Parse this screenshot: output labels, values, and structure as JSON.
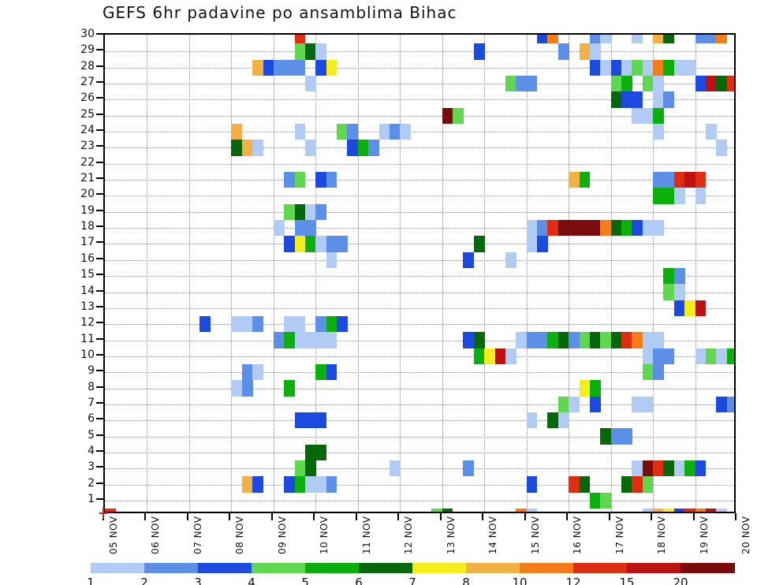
{
  "title": "GEFS 6hr padavine po ansamblima Bihac",
  "y_axis": {
    "labels": [
      "30",
      "29",
      "28",
      "27",
      "26",
      "25",
      "24",
      "23",
      "22",
      "21",
      "20",
      "19",
      "18",
      "17",
      "16",
      "15",
      "14",
      "13",
      "12",
      "11",
      "10",
      "9",
      "8",
      "7",
      "6",
      "5",
      "4",
      "3",
      "2",
      "1"
    ]
  },
  "x_axis": {
    "labels": [
      "05 NOV",
      "06 NOV",
      "07 NOV",
      "08 NOV",
      "09 NOV",
      "10 NOV",
      "11 NOV",
      "12 NOV",
      "13 NOV",
      "14 NOV",
      "15 NOV",
      "16 NOV",
      "17 NOV",
      "18 NOV",
      "19 NOV",
      "20 NOV"
    ]
  },
  "colors": {
    "p": "#b0ccf4",
    "c": "#5c8fe8",
    "b": "#1c4ae0",
    "lg": "#5fd74f",
    "g": "#0cb00c",
    "dg": "#07670b",
    "y": "#f3ee1c",
    "lo": "#f3b144",
    "o": "#f47d17",
    "r": "#df2d12",
    "dr": "#bc1312",
    "m": "#7c0b0b",
    "origin_marker": "#cc2a1e"
  },
  "colorbar": {
    "tick_labels": [
      "1",
      "2",
      "3",
      "4",
      "5",
      "6",
      "7",
      "8",
      "10",
      "12",
      "15",
      "20"
    ],
    "segment_keys": [
      "p",
      "c",
      "b",
      "lg",
      "g",
      "dg",
      "y",
      "lo",
      "o",
      "r",
      "dr",
      "m"
    ],
    "segment_ranges": [
      "1-2",
      "2-3",
      "3-4",
      "4-5",
      "5-6",
      "6-7",
      "7-8",
      "8-10",
      "10-12",
      "12-15",
      "15-20",
      "20+"
    ]
  },
  "chart_data": {
    "type": "heatmap",
    "title": "GEFS 6hr padavine po ansamblima Bihac",
    "x_range": [
      "05 NOV",
      "20 NOV"
    ],
    "slots": 60,
    "slot_duration_hours": 6,
    "rows": "ensemble members 1-30 (bottom to top); row 0 = strip on time axis",
    "units_mm": {
      "p": "1-2",
      "c": "2-3",
      "b": "3-4",
      "lg": "4-5",
      "g": "5-6",
      "dg": "6-7",
      "y": "7-8",
      "lo": "8-10",
      "o": "10-12",
      "r": "12-15",
      "dr": "15-20",
      "m": ">20"
    },
    "cells": {
      "30": [
        [
          18,
          "r"
        ],
        [
          41,
          "b"
        ],
        [
          42,
          "o"
        ],
        [
          46,
          "c"
        ],
        [
          47,
          "p"
        ],
        [
          50,
          "p"
        ],
        [
          52,
          "lo"
        ],
        [
          53,
          "dg"
        ],
        [
          56,
          "c"
        ],
        [
          57,
          "c"
        ],
        [
          58,
          "o"
        ]
      ],
      "29": [
        [
          18,
          "lg"
        ],
        [
          19,
          "dg"
        ],
        [
          20,
          "p"
        ],
        [
          35,
          "b"
        ],
        [
          43,
          "c"
        ],
        [
          45,
          "lo"
        ],
        [
          46,
          "p"
        ]
      ],
      "28": [
        [
          14,
          "lo"
        ],
        [
          15,
          "b"
        ],
        [
          16,
          "c"
        ],
        [
          17,
          "c"
        ],
        [
          18,
          "c"
        ],
        [
          20,
          "b"
        ],
        [
          21,
          "y"
        ],
        [
          46,
          "b"
        ],
        [
          47,
          "p"
        ],
        [
          48,
          "b"
        ],
        [
          49,
          "p"
        ],
        [
          50,
          "lg"
        ],
        [
          51,
          "p"
        ],
        [
          52,
          "o"
        ],
        [
          53,
          "g"
        ],
        [
          54,
          "p"
        ],
        [
          55,
          "p"
        ]
      ],
      "27": [
        [
          19,
          "p"
        ],
        [
          38,
          "lg"
        ],
        [
          39,
          "c"
        ],
        [
          40,
          "c"
        ],
        [
          48,
          "lg"
        ],
        [
          49,
          "g"
        ],
        [
          51,
          "lg"
        ],
        [
          52,
          "p"
        ],
        [
          56,
          "b"
        ],
        [
          57,
          "dr"
        ],
        [
          58,
          "dg"
        ],
        [
          59,
          "r"
        ]
      ],
      "26": [
        [
          48,
          "dg"
        ],
        [
          49,
          "b"
        ],
        [
          50,
          "b"
        ],
        [
          52,
          "p"
        ],
        [
          53,
          "c"
        ]
      ],
      "25": [
        [
          32,
          "m"
        ],
        [
          33,
          "lg"
        ],
        [
          50,
          "p"
        ],
        [
          51,
          "p"
        ],
        [
          52,
          "g"
        ]
      ],
      "24": [
        [
          12,
          "lo"
        ],
        [
          18,
          "p"
        ],
        [
          22,
          "lg"
        ],
        [
          23,
          "c"
        ],
        [
          26,
          "p"
        ],
        [
          27,
          "c"
        ],
        [
          28,
          "p"
        ],
        [
          52,
          "p"
        ],
        [
          57,
          "p"
        ]
      ],
      "23": [
        [
          12,
          "dg"
        ],
        [
          13,
          "lo"
        ],
        [
          14,
          "p"
        ],
        [
          19,
          "p"
        ],
        [
          23,
          "b"
        ],
        [
          24,
          "g"
        ],
        [
          25,
          "c"
        ],
        [
          58,
          "p"
        ]
      ],
      "22": [],
      "21": [
        [
          17,
          "c"
        ],
        [
          18,
          "lg"
        ],
        [
          20,
          "b"
        ],
        [
          21,
          "c"
        ],
        [
          44,
          "lo"
        ],
        [
          45,
          "g"
        ],
        [
          52,
          "c"
        ],
        [
          53,
          "c"
        ],
        [
          54,
          "r"
        ],
        [
          55,
          "dr"
        ],
        [
          56,
          "r"
        ]
      ],
      "20": [
        [
          52,
          "g"
        ],
        [
          53,
          "g"
        ],
        [
          54,
          "p"
        ],
        [
          56,
          "p"
        ]
      ],
      "19": [
        [
          17,
          "lg"
        ],
        [
          18,
          "dg"
        ],
        [
          19,
          "p"
        ],
        [
          20,
          "c"
        ]
      ],
      "18": [
        [
          16,
          "p"
        ],
        [
          18,
          "c"
        ],
        [
          19,
          "c"
        ],
        [
          40,
          "p"
        ],
        [
          41,
          "c"
        ],
        [
          42,
          "r"
        ],
        [
          43,
          "m"
        ],
        [
          44,
          "m"
        ],
        [
          45,
          "m"
        ],
        [
          46,
          "m"
        ],
        [
          47,
          "o"
        ],
        [
          48,
          "dg"
        ],
        [
          49,
          "g"
        ],
        [
          50,
          "b"
        ],
        [
          51,
          "p"
        ],
        [
          52,
          "p"
        ]
      ],
      "17": [
        [
          17,
          "b"
        ],
        [
          18,
          "y"
        ],
        [
          19,
          "g"
        ],
        [
          20,
          "p"
        ],
        [
          21,
          "c"
        ],
        [
          22,
          "c"
        ],
        [
          35,
          "dg"
        ],
        [
          40,
          "p"
        ],
        [
          41,
          "b"
        ]
      ],
      "16": [
        [
          21,
          "p"
        ],
        [
          34,
          "b"
        ],
        [
          38,
          "p"
        ]
      ],
      "15": [
        [
          53,
          "g"
        ],
        [
          54,
          "c"
        ]
      ],
      "14": [
        [
          53,
          "lg"
        ],
        [
          54,
          "p"
        ]
      ],
      "13": [
        [
          54,
          "b"
        ],
        [
          55,
          "y"
        ],
        [
          56,
          "dr"
        ]
      ],
      "12": [
        [
          9,
          "b"
        ],
        [
          12,
          "p"
        ],
        [
          13,
          "p"
        ],
        [
          14,
          "c"
        ],
        [
          17,
          "p"
        ],
        [
          18,
          "p"
        ],
        [
          20,
          "c"
        ],
        [
          21,
          "g"
        ],
        [
          22,
          "b"
        ]
      ],
      "11": [
        [
          16,
          "c"
        ],
        [
          17,
          "g"
        ],
        [
          18,
          "p"
        ],
        [
          19,
          "p"
        ],
        [
          20,
          "p"
        ],
        [
          21,
          "p"
        ],
        [
          34,
          "b"
        ],
        [
          35,
          "dg"
        ],
        [
          39,
          "p"
        ],
        [
          40,
          "c"
        ],
        [
          41,
          "c"
        ],
        [
          42,
          "g"
        ],
        [
          43,
          "dg"
        ],
        [
          44,
          "c"
        ],
        [
          45,
          "lg"
        ],
        [
          46,
          "dg"
        ],
        [
          47,
          "lg"
        ],
        [
          48,
          "dg"
        ],
        [
          49,
          "r"
        ],
        [
          50,
          "o"
        ],
        [
          51,
          "p"
        ],
        [
          52,
          "p"
        ]
      ],
      "10": [
        [
          35,
          "g"
        ],
        [
          36,
          "y"
        ],
        [
          37,
          "dr"
        ],
        [
          38,
          "p"
        ],
        [
          51,
          "p"
        ],
        [
          52,
          "c"
        ],
        [
          53,
          "c"
        ],
        [
          56,
          "p"
        ],
        [
          57,
          "lg"
        ],
        [
          58,
          "p"
        ],
        [
          59,
          "g"
        ]
      ],
      "9": [
        [
          13,
          "c"
        ],
        [
          14,
          "p"
        ],
        [
          20,
          "g"
        ],
        [
          21,
          "b"
        ],
        [
          51,
          "lg"
        ],
        [
          52,
          "c"
        ]
      ],
      "8": [
        [
          12,
          "p"
        ],
        [
          13,
          "c"
        ],
        [
          17,
          "g"
        ],
        [
          45,
          "y"
        ],
        [
          46,
          "g"
        ]
      ],
      "7": [
        [
          43,
          "lg"
        ],
        [
          44,
          "p"
        ],
        [
          46,
          "b"
        ],
        [
          50,
          "p"
        ],
        [
          51,
          "p"
        ],
        [
          58,
          "b"
        ],
        [
          59,
          "c"
        ]
      ],
      "6": [
        [
          18,
          "b"
        ],
        [
          19,
          "b"
        ],
        [
          20,
          "b"
        ],
        [
          40,
          "p"
        ],
        [
          42,
          "dg"
        ],
        [
          43,
          "p"
        ]
      ],
      "5": [
        [
          47,
          "dg"
        ],
        [
          48,
          "c"
        ],
        [
          49,
          "c"
        ]
      ],
      "4": [
        [
          19,
          "dg"
        ],
        [
          20,
          "dg"
        ]
      ],
      "3": [
        [
          18,
          "lg"
        ],
        [
          19,
          "dg"
        ],
        [
          27,
          "p"
        ],
        [
          34,
          "c"
        ],
        [
          50,
          "p"
        ],
        [
          51,
          "m"
        ],
        [
          52,
          "r"
        ],
        [
          53,
          "dg"
        ],
        [
          54,
          "p"
        ],
        [
          55,
          "g"
        ],
        [
          56,
          "b"
        ]
      ],
      "2": [
        [
          13,
          "lo"
        ],
        [
          14,
          "b"
        ],
        [
          17,
          "b"
        ],
        [
          18,
          "g"
        ],
        [
          19,
          "p"
        ],
        [
          20,
          "p"
        ],
        [
          21,
          "c"
        ],
        [
          40,
          "b"
        ],
        [
          44,
          "r"
        ],
        [
          45,
          "dg"
        ],
        [
          49,
          "dg"
        ],
        [
          50,
          "r"
        ],
        [
          51,
          "lg"
        ]
      ],
      "1": [
        [
          46,
          "g"
        ],
        [
          47,
          "lg"
        ]
      ],
      "0": [
        [
          0,
          "r"
        ],
        [
          31,
          "lg"
        ],
        [
          32,
          "dg"
        ],
        [
          39,
          "o"
        ],
        [
          40,
          "p"
        ],
        [
          51,
          "p"
        ],
        [
          52,
          "lo"
        ],
        [
          53,
          "y"
        ],
        [
          54,
          "b"
        ],
        [
          55,
          "r"
        ],
        [
          56,
          "o"
        ],
        [
          57,
          "dr"
        ],
        [
          58,
          "p"
        ]
      ]
    }
  }
}
